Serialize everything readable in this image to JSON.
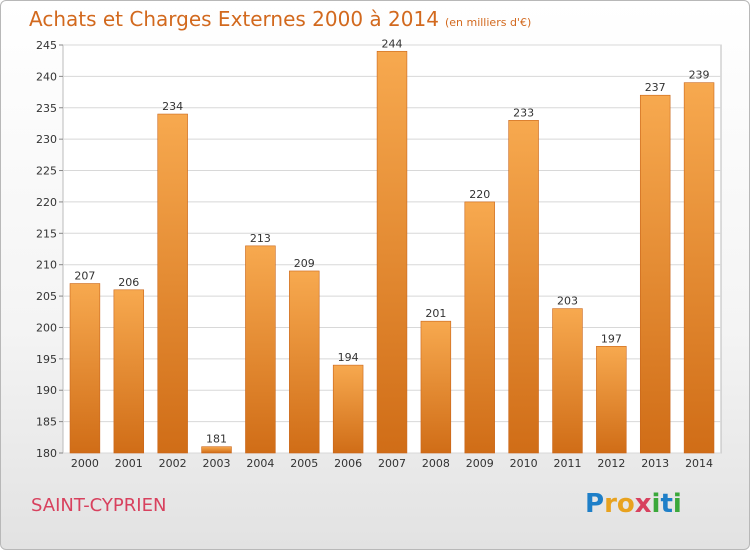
{
  "header": {
    "title": "Achats et Charges Externes 2000 à 2014",
    "subtitle": "(en milliers d'€)"
  },
  "footer": {
    "place": "SAINT-CYPRIEN",
    "logo_text": "Proxiti"
  },
  "colors": {
    "bar_top": "#f6a54c",
    "bar_bottom": "#d26f1a",
    "title": "#d2691e",
    "place": "#d8415e"
  },
  "chart_data": {
    "type": "bar",
    "title": "Achats et Charges Externes 2000 à 2014",
    "subtitle": "(en milliers d'€)",
    "categories": [
      "2000",
      "2001",
      "2002",
      "2003",
      "2004",
      "2005",
      "2006",
      "2007",
      "2008",
      "2009",
      "2010",
      "2011",
      "2012",
      "2013",
      "2014"
    ],
    "values": [
      207,
      206,
      234,
      181,
      213,
      209,
      194,
      244,
      201,
      220,
      233,
      203,
      197,
      237,
      239
    ],
    "ylim": [
      180,
      245
    ],
    "yticks": [
      180,
      185,
      190,
      195,
      200,
      205,
      210,
      215,
      220,
      225,
      230,
      235,
      240,
      245
    ],
    "grid": true,
    "data_labels": true
  }
}
